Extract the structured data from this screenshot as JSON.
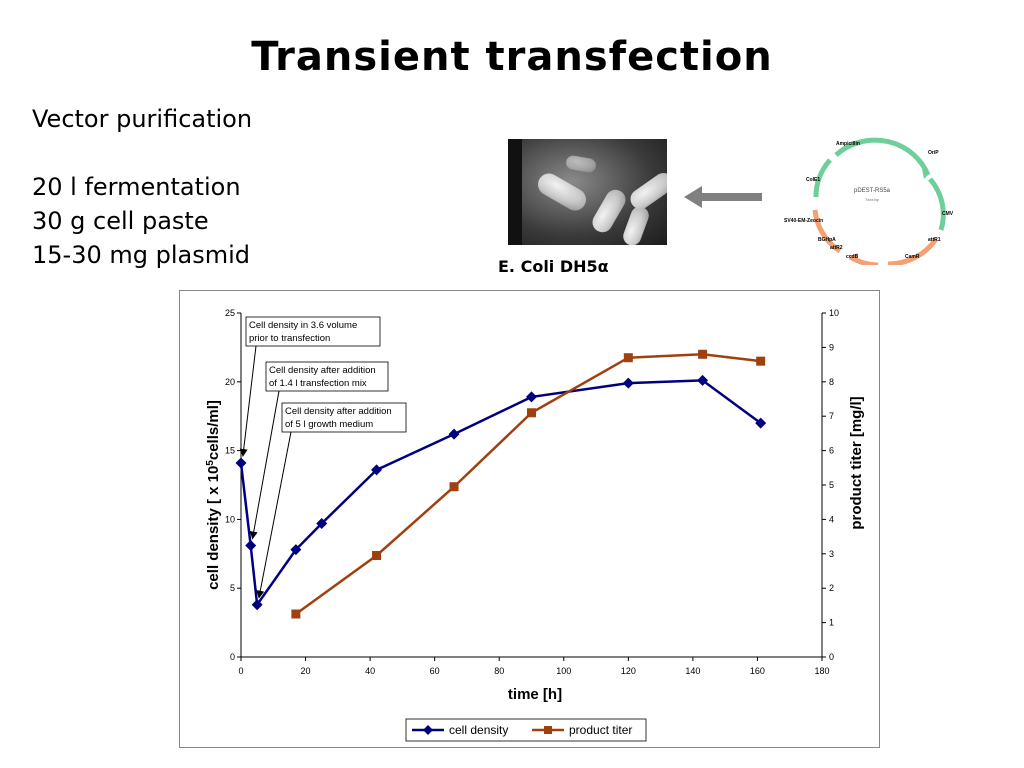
{
  "title": "Transient transfection",
  "left_text": {
    "line1": "Vector purification",
    "line2": "20 l fermentation",
    "line3": "30 g cell paste",
    "line4": "15-30 mg plasmid"
  },
  "micrograph_caption": "E. Coli DH5α",
  "plasmid_map": {
    "name": "pDEST-RS5a",
    "size": "7xxx bp",
    "labels": [
      "Ampicillin",
      "OriP",
      "ColE1",
      "CMV",
      "SV40-EM-Zeocin",
      "attR1",
      "BGHpA",
      "attR2",
      "ccdB",
      "CamR"
    ]
  },
  "chart_data": {
    "type": "line",
    "xlabel": "time [h]",
    "ylabel_left": "cell density [ x 10",
    "ylabel_left_sup": "5",
    "ylabel_left_tail": "cells/ml]",
    "ylabel_right": "product titer [mg/l]",
    "xlim": [
      0,
      180
    ],
    "ylim_left": [
      0,
      25
    ],
    "ylim_right": [
      0,
      10
    ],
    "x_ticks": [
      "0",
      "20",
      "40",
      "60",
      "80",
      "100",
      "120",
      "140",
      "160",
      "180"
    ],
    "y_left_ticks": [
      "0",
      "5",
      "10",
      "15",
      "20",
      "25"
    ],
    "y_right_ticks": [
      "0",
      "1",
      "2",
      "3",
      "4",
      "5",
      "6",
      "7",
      "8",
      "9",
      "10"
    ],
    "grid": false,
    "legend_position": "bottom",
    "series": [
      {
        "name": "cell density",
        "axis": "left",
        "color": "#00007f",
        "marker": "diamond",
        "x": [
          0,
          3,
          5,
          17,
          25,
          42,
          66,
          90,
          120,
          143,
          161
        ],
        "y": [
          14.1,
          8.1,
          3.8,
          7.8,
          9.7,
          13.6,
          16.2,
          18.9,
          19.9,
          20.1,
          17.0
        ]
      },
      {
        "name": "product titer",
        "axis": "right",
        "color": "#a0400f",
        "marker": "square",
        "x": [
          17,
          42,
          66,
          90,
          120,
          143,
          161
        ],
        "y": [
          1.25,
          2.95,
          4.95,
          7.1,
          8.7,
          8.8,
          8.6
        ]
      }
    ],
    "annotations": [
      {
        "text": [
          "Cell density in 3.6 volume",
          "prior to transfection"
        ],
        "point_x": 0,
        "point_y": 14.1
      },
      {
        "text": [
          "Cell density after addition",
          "of 1.4 l transfection mix"
        ],
        "point_x": 3,
        "point_y": 8.1
      },
      {
        "text": [
          "Cell density after addition",
          "of 5 l growth medium"
        ],
        "point_x": 5,
        "point_y": 3.8
      }
    ]
  }
}
